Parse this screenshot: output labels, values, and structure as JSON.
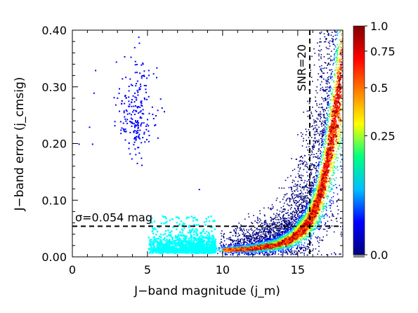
{
  "chart_data": {
    "type": "scatter",
    "xlabel": "J−band magnitude (j_m)",
    "ylabel": "J−band error (j_cmsig)",
    "xlim": [
      0,
      18
    ],
    "ylim": [
      0.0,
      0.4
    ],
    "x_ticks": [
      {
        "value": 0,
        "label": "0"
      },
      {
        "value": 5,
        "label": "5"
      },
      {
        "value": 10,
        "label": "10"
      },
      {
        "value": 15,
        "label": "15"
      }
    ],
    "y_ticks": [
      {
        "value": 0.0,
        "label": "0.00"
      },
      {
        "value": 0.1,
        "label": "0.10"
      },
      {
        "value": 0.2,
        "label": "0.20"
      },
      {
        "value": 0.3,
        "label": "0.30"
      },
      {
        "value": 0.4,
        "label": "0.40"
      }
    ],
    "colorbar": {
      "range": [
        0.0,
        1.0
      ],
      "ticks": [
        {
          "value": 0.0,
          "label": "0.0"
        },
        {
          "value": 0.25,
          "label": "0.25"
        },
        {
          "value": 0.5,
          "label": "0.5"
        },
        {
          "value": 0.75,
          "label": "0.75"
        },
        {
          "value": 1.0,
          "label": "1.0"
        }
      ],
      "colormap": [
        "#00007f",
        "#0000ff",
        "#00bfff",
        "#00ff80",
        "#ffff00",
        "#ff8000",
        "#ff0000",
        "#7f0000"
      ]
    },
    "reference_lines": {
      "horizontal": {
        "y": 0.054,
        "label": "σ=0.054 mag"
      },
      "vertical": {
        "x": 15.8,
        "label": "SNR=20"
      }
    },
    "series": [
      {
        "kind": "density",
        "description_color": "density colormap",
        "x_range": [
          9.5,
          18
        ],
        "trend_points": [
          [
            10,
            0.013
          ],
          [
            12,
            0.016
          ],
          [
            13.5,
            0.022
          ],
          [
            14.5,
            0.032
          ],
          [
            15.5,
            0.055
          ],
          [
            16.2,
            0.09
          ],
          [
            16.8,
            0.15
          ],
          [
            17.4,
            0.24
          ],
          [
            17.8,
            0.3
          ]
        ]
      },
      {
        "kind": "points",
        "color": "#00ffff",
        "x_range": [
          5,
          9.5
        ],
        "y_range": [
          0.005,
          0.07
        ]
      },
      {
        "kind": "points",
        "color": "#0000ff",
        "cluster_center": [
          4.2,
          0.26
        ],
        "cluster_spread": [
          0.6,
          0.045
        ],
        "outliers": [
          [
            0.4,
            0.2
          ],
          [
            1.1,
            0.23
          ],
          [
            1.3,
            0.2
          ],
          [
            1.4,
            0.29
          ],
          [
            1.5,
            0.33
          ],
          [
            8.4,
            0.12
          ]
        ]
      }
    ]
  }
}
